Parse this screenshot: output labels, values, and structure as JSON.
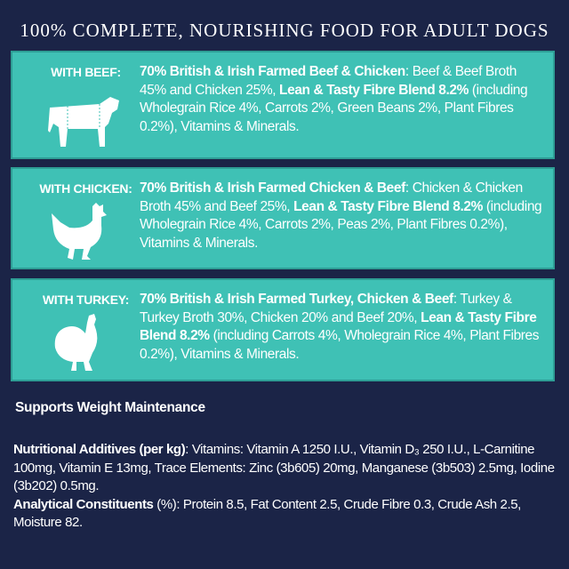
{
  "header": {
    "title": "100% COMPLETE, NOURISHING FOOD FOR ADULT DOGS"
  },
  "variants": [
    {
      "label": "WITH BEEF:",
      "segments": [
        {
          "text": "70% British & Irish Farmed Beef & Chicken",
          "bold": true
        },
        {
          "text": ": Beef & Beef Broth 45% and Chicken 25%, ",
          "bold": false
        },
        {
          "text": "Lean & Tasty Fibre Blend 8.2%",
          "bold": true
        },
        {
          "text": " (including Wholegrain Rice 4%, Carrots 2%, Green Beans 2%, Plant Fibres 0.2%), Vitamins & Minerals.",
          "bold": false
        }
      ]
    },
    {
      "label": "WITH CHICKEN:",
      "segments": [
        {
          "text": "70% British & Irish Farmed Chicken & Beef",
          "bold": true
        },
        {
          "text": ": Chicken & Chicken Broth 45% and Beef 25%, ",
          "bold": false
        },
        {
          "text": "Lean & Tasty Fibre Blend 8.2%",
          "bold": true
        },
        {
          "text": " (including Wholegrain Rice 4%, Carrots 2%, Peas 2%, Plant Fibres 0.2%), Vitamins & Minerals.",
          "bold": false
        }
      ]
    },
    {
      "label": "WITH TURKEY:",
      "segments": [
        {
          "text": "70% British & Irish Farmed Turkey, Chicken & Beef",
          "bold": true
        },
        {
          "text": ": Turkey & Turkey Broth 30%, Chicken 20% and Beef 20%, ",
          "bold": false
        },
        {
          "text": "Lean & Tasty Fibre Blend 8.2%",
          "bold": true
        },
        {
          "text": " (including Carrots 4%, Wholegrain Rice 4%, Plant Fibres 0.2%), Vitamins & Minerals.",
          "bold": false
        }
      ]
    }
  ],
  "footer": {
    "heading": "Supports Weight Maintenance",
    "paragraphs": [
      {
        "segments": [
          {
            "text": "Nutritional Additives (per kg)",
            "bold": true
          },
          {
            "text": ": Vitamins: Vitamin A 1250 I.U., Vitamin D₃ 250 I.U., L-Carnitine 100mg, Vitamin E 13mg, Trace Elements: Zinc (3b605) 20mg, Manganese (3b503) 2.5mg, Iodine (3b202) 0.5mg.",
            "bold": false
          }
        ]
      },
      {
        "segments": [
          {
            "text": "Analytical Constituents",
            "bold": true
          },
          {
            "text": " (%): Protein 8.5, Fat Content 2.5, Crude Fibre 0.3, Crude Ash 2.5, Moisture 82.",
            "bold": false
          }
        ]
      }
    ]
  }
}
